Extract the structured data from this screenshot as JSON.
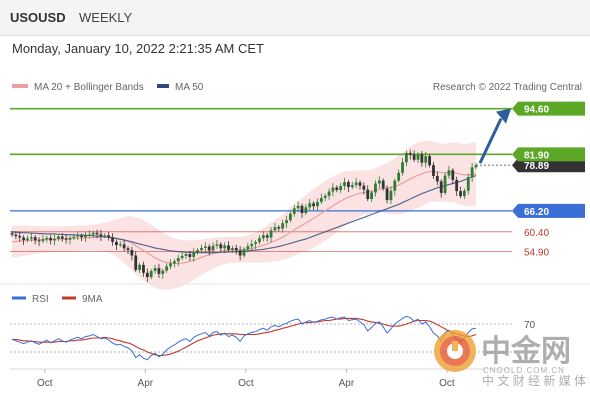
{
  "header": {
    "symbol": "USOUSD",
    "period": "WEEKLY",
    "timestamp": "Monday, January 10, 2022 2:21:35 AM CET",
    "credit": "Research © 2022 Trading Central"
  },
  "colors": {
    "resistance": "#5ca826",
    "pivot": "#3a6fd8",
    "support": "#d9534f",
    "ma20": "#e8a0a0",
    "ma50": "#2c4a7c",
    "bollinger_fill": "#fbe0e0",
    "up_candle": "#2e7d32",
    "down_candle": "#333333",
    "arrow": "#2e5c9a",
    "price_tag": "#333333",
    "rsi": "#3a6fd8",
    "rsi_ma": "#c0392b"
  },
  "watermark": {
    "logo_icon": "zhongjin-coin-logo",
    "cn_name": "中金网",
    "domain": "CNGOLD.COM.CN",
    "slogan": "中 文 财 经 新 媒 体"
  },
  "chart_data": [
    {
      "type": "candlestick",
      "legend": [
        {
          "label": "MA 20 + Bollinger Bands",
          "color": "#e8a0a0"
        },
        {
          "label": "MA 50",
          "color": "#2c4a7c"
        }
      ],
      "legend_position": "top-left",
      "y_range": [
        47,
        97
      ],
      "grid": false,
      "levels": [
        {
          "value": 94.6,
          "label": "94.60",
          "kind": "resistance"
        },
        {
          "value": 81.9,
          "label": "81.90",
          "kind": "resistance"
        },
        {
          "value": 66.2,
          "label": "66.20",
          "kind": "pivot"
        },
        {
          "value": 60.4,
          "label": "60.40",
          "kind": "support"
        },
        {
          "value": 54.9,
          "label": "54.90",
          "kind": "support"
        }
      ],
      "current_price": {
        "value": 78.89,
        "label": "78.89"
      },
      "x_tick_labels": [
        "Oct",
        "Apr",
        "Oct",
        "Apr",
        "Oct"
      ],
      "close": [
        59.6,
        59.2,
        58.8,
        58.1,
        58.5,
        58.9,
        58.0,
        57.8,
        58.3,
        58.7,
        58.0,
        58.4,
        59.1,
        58.5,
        58.2,
        58.7,
        59.0,
        59.3,
        58.9,
        59.4,
        59.6,
        60.1,
        59.7,
        59.2,
        59.4,
        58.8,
        57.6,
        56.7,
        56.9,
        55.8,
        55.3,
        53.8,
        49.8,
        51.2,
        49.0,
        47.8,
        49.5,
        50.3,
        48.7,
        49.6,
        50.8,
        51.6,
        52.2,
        53.1,
        53.7,
        54.2,
        53.4,
        54.6,
        55.3,
        55.9,
        56.3,
        55.2,
        56.5,
        56.9,
        55.8,
        56.6,
        55.4,
        55.9,
        55.2,
        53.8,
        55.5,
        56.4,
        57.0,
        57.5,
        58.6,
        59.4,
        58.8,
        60.8,
        61.7,
        61.3,
        62.8,
        63.6,
        65.4,
        66.9,
        67.6,
        65.6,
        67.2,
        68.3,
        67.5,
        68.7,
        69.8,
        70.4,
        71.6,
        72.7,
        72.0,
        73.1,
        74.2,
        72.8,
        73.4,
        74.1,
        73.2,
        72.1,
        69.5,
        71.3,
        73.8,
        74.6,
        72.4,
        69.2,
        71.8,
        74.6,
        76.8,
        79.7,
        82.3,
        81.8,
        80.4,
        81.9,
        79.6,
        81.4,
        78.9,
        75.9,
        74.4,
        71.2,
        76.0,
        77.5,
        74.8,
        71.7,
        70.3,
        71.8,
        75.6,
        78.3,
        78.9
      ],
      "ma20": [
        57.6,
        57.7,
        57.8,
        57.9,
        58.0,
        58.0,
        58.1,
        58.2,
        58.2,
        58.3,
        58.3,
        58.4,
        58.4,
        58.4,
        58.5,
        58.5,
        58.6,
        58.6,
        58.6,
        58.7,
        58.7,
        58.8,
        58.8,
        58.9,
        59.0,
        58.9,
        58.8,
        58.6,
        58.4,
        58.1,
        57.7,
        57.2,
        56.5,
        55.9,
        55.2,
        54.5,
        53.8,
        53.2,
        52.6,
        52.2,
        51.9,
        51.7,
        51.6,
        51.6,
        51.7,
        51.9,
        52.2,
        52.5,
        52.9,
        53.3,
        53.7,
        54.0,
        54.4,
        54.7,
        55.0,
        55.2,
        55.3,
        55.4,
        55.4,
        55.4,
        55.5,
        55.6,
        55.8,
        56.0,
        56.3,
        56.7,
        57.0,
        57.5,
        57.9,
        58.4,
        58.9,
        59.5,
        60.2,
        60.9,
        61.6,
        62.2,
        62.8,
        63.5,
        64.1,
        64.8,
        65.5,
        66.2,
        66.9,
        67.6,
        68.3,
        68.9,
        69.5,
        70.0,
        70.4,
        70.8,
        71.1,
        71.3,
        71.4,
        71.6,
        71.9,
        72.2,
        72.4,
        72.5,
        72.7,
        73.0,
        73.4,
        73.9,
        74.5,
        75.1,
        75.6,
        76.1,
        76.5,
        76.9,
        77.1,
        77.1,
        77.0,
        76.8,
        76.8,
        76.9,
        76.9,
        76.7,
        76.4,
        76.2,
        76.2,
        76.3,
        76.5
      ],
      "ma50": [
        60.3,
        60.3,
        60.2,
        60.1,
        60.1,
        60.0,
        60.0,
        59.9,
        59.9,
        59.8,
        59.8,
        59.8,
        59.7,
        59.7,
        59.6,
        59.6,
        59.5,
        59.5,
        59.5,
        59.4,
        59.4,
        59.3,
        59.2,
        59.1,
        59.0,
        58.9,
        58.7,
        58.5,
        58.3,
        58.1,
        57.9,
        57.6,
        57.3,
        57.0,
        56.7,
        56.5,
        56.2,
        55.9,
        55.7,
        55.5,
        55.3,
        55.1,
        55.0,
        54.9,
        54.8,
        54.7,
        54.7,
        54.6,
        54.6,
        54.6,
        54.6,
        54.6,
        54.6,
        54.6,
        54.7,
        54.7,
        54.8,
        54.8,
        54.9,
        54.9,
        55.0,
        55.1,
        55.2,
        55.3,
        55.4,
        55.5,
        55.7,
        55.9,
        56.1,
        56.3,
        56.6,
        56.9,
        57.2,
        57.5,
        57.8,
        58.1,
        58.4,
        58.8,
        59.2,
        59.6,
        60.0,
        60.4,
        60.8,
        61.2,
        61.6,
        62.0,
        62.4,
        62.8,
        63.2,
        63.6,
        64.0,
        64.4,
        64.8,
        65.2,
        65.6,
        66.0,
        66.4,
        66.8,
        67.2,
        67.6,
        68.0,
        68.5,
        69.0,
        69.5,
        70.0,
        70.5,
        71.0,
        71.4,
        71.8,
        72.2,
        72.6,
        72.9,
        73.2,
        73.5,
        73.8,
        74.1,
        74.4,
        74.8,
        75.2,
        75.6,
        76.0
      ],
      "bb_width": [
        4.5,
        4.4,
        4.3,
        4.2,
        4.1,
        4.0,
        3.9,
        3.8,
        3.7,
        3.7,
        3.6,
        3.6,
        3.5,
        3.5,
        3.5,
        3.5,
        3.5,
        3.5,
        3.5,
        3.5,
        3.5,
        3.6,
        3.7,
        3.8,
        4.0,
        4.3,
        4.7,
        5.2,
        5.8,
        6.4,
        7.0,
        7.5,
        7.9,
        8.2,
        8.4,
        8.5,
        8.5,
        8.4,
        8.2,
        7.9,
        7.6,
        7.3,
        7.0,
        6.7,
        6.4,
        6.1,
        5.8,
        5.5,
        5.2,
        4.9,
        4.7,
        4.5,
        4.3,
        4.1,
        3.9,
        3.8,
        3.7,
        3.6,
        3.6,
        3.6,
        3.7,
        3.8,
        4.0,
        4.2,
        4.5,
        4.8,
        5.1,
        5.4,
        5.7,
        6.0,
        6.3,
        6.6,
        6.9,
        7.2,
        7.4,
        7.6,
        7.8,
        8.0,
        8.1,
        8.2,
        8.3,
        8.3,
        8.3,
        8.2,
        8.0,
        7.8,
        7.6,
        7.3,
        7.0,
        6.7,
        6.4,
        6.2,
        6.1,
        6.1,
        6.2,
        6.4,
        6.7,
        7.0,
        7.4,
        7.8,
        8.2,
        8.5,
        8.8,
        9.0,
        9.1,
        9.1,
        9.0,
        8.8,
        8.5,
        8.3,
        8.2,
        8.1,
        8.1,
        8.2,
        8.3,
        8.4,
        8.5,
        8.6,
        8.7,
        8.8,
        8.9
      ]
    },
    {
      "type": "line",
      "legend": [
        {
          "label": "RSI",
          "color": "#3a6fd8"
        },
        {
          "label": "9MA",
          "color": "#c0392b"
        }
      ],
      "legend_position": "top-left",
      "y_range": [
        10,
        90
      ],
      "y_ticks": [
        70
      ],
      "grid": false,
      "series": [
        {
          "name": "RSI",
          "values": [
            48,
            46,
            44,
            42,
            44,
            46,
            43,
            41,
            44,
            47,
            43,
            46,
            49,
            46,
            44,
            47,
            49,
            51,
            49,
            52,
            53,
            55,
            52,
            49,
            50,
            47,
            43,
            40,
            41,
            38,
            36,
            32,
            22,
            26,
            21,
            19,
            25,
            28,
            23,
            27,
            33,
            37,
            40,
            44,
            47,
            49,
            45,
            51,
            54,
            56,
            58,
            53,
            58,
            59,
            54,
            57,
            52,
            54,
            51,
            45,
            53,
            56,
            58,
            59,
            62,
            64,
            61,
            66,
            68,
            66,
            69,
            71,
            74,
            76,
            77,
            70,
            73,
            75,
            72,
            74,
            76,
            77,
            79,
            80,
            77,
            79,
            80,
            75,
            76,
            77,
            73,
            69,
            60,
            65,
            71,
            73,
            66,
            57,
            63,
            70,
            74,
            78,
            81,
            79,
            74,
            77,
            70,
            73,
            66,
            57,
            53,
            46,
            58,
            61,
            55,
            48,
            45,
            49,
            58,
            63,
            64
          ]
        },
        {
          "name": "9MA",
          "values": [
            48,
            48,
            47,
            46,
            46,
            45,
            45,
            44,
            44,
            44,
            44,
            44,
            45,
            45,
            45,
            46,
            46,
            47,
            47,
            48,
            49,
            50,
            50,
            50,
            51,
            50,
            49,
            47,
            46,
            44,
            43,
            41,
            38,
            35,
            33,
            30,
            28,
            26,
            25,
            25,
            26,
            27,
            29,
            31,
            34,
            37,
            40,
            43,
            46,
            48,
            50,
            52,
            54,
            55,
            56,
            56,
            56,
            56,
            56,
            55,
            55,
            55,
            55,
            55,
            56,
            57,
            58,
            59,
            61,
            62,
            64,
            65,
            67,
            68,
            70,
            71,
            72,
            72,
            73,
            73,
            74,
            75,
            75,
            76,
            77,
            77,
            78,
            78,
            78,
            78,
            77,
            76,
            74,
            73,
            72,
            71,
            70,
            68,
            67,
            67,
            67,
            68,
            70,
            72,
            74,
            75,
            75,
            75,
            74,
            72,
            69,
            66,
            63,
            60,
            58,
            56,
            54,
            53,
            52,
            53,
            55
          ]
        }
      ],
      "x_tick_labels": [
        "Oct",
        "Apr",
        "Oct",
        "Apr",
        "Oct"
      ]
    }
  ]
}
